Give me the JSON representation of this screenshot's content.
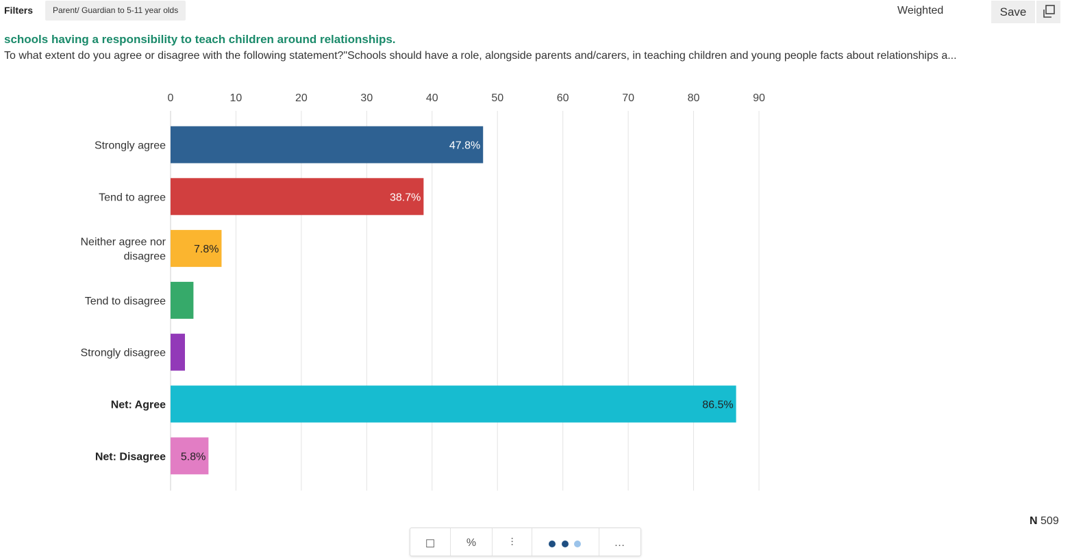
{
  "header": {
    "filters_label": "Filters",
    "filter_chip": "Parent/ Guardian to 5-11 year olds",
    "weighted_label": "Weighted",
    "save_label": "Save",
    "copy_icon": "copy-icon"
  },
  "question": {
    "title": "schools having a responsibility to teach children around relationships.",
    "text": "To what extent do you agree or disagree with the following statement?\"Schools should have a role, alongside parents and/carers, in teaching children and young people facts about relationships a..."
  },
  "chart_data": {
    "type": "bar",
    "orientation": "horizontal",
    "title": "",
    "xlabel": "",
    "ylabel": "",
    "xlim": [
      0,
      90
    ],
    "ticks": [
      0,
      10,
      20,
      30,
      40,
      50,
      60,
      70,
      80,
      90
    ],
    "grid": true,
    "categories": [
      [
        "Strongly agree"
      ],
      [
        "Tend to agree"
      ],
      [
        "Neither agree nor",
        "disagree"
      ],
      [
        "Tend to disagree"
      ],
      [
        "Strongly disagree"
      ],
      [
        "Net: Agree"
      ],
      [
        "Net: Disagree"
      ]
    ],
    "bold": [
      false,
      false,
      false,
      false,
      false,
      true,
      true
    ],
    "values": [
      47.8,
      38.7,
      7.8,
      3.5,
      2.2,
      86.5,
      5.8
    ],
    "labels": [
      "47.8%",
      "38.7%",
      "7.8%",
      "",
      "",
      "86.5%",
      "5.8%"
    ],
    "colors": [
      "#2e6192",
      "#d13f3f",
      "#fbb52f",
      "#36aa6a",
      "#9239b8",
      "#17bcd0",
      "#e27dc4"
    ],
    "label_colors": [
      "#ffffff",
      "#ffffff",
      "#222222",
      "#222222",
      "#222222",
      "#222222",
      "#222222"
    ]
  },
  "footer": {
    "n_label": "N",
    "n_value": "509"
  },
  "toolbar": {
    "items": [
      "☐",
      "%",
      "⫶",
      "",
      "…"
    ],
    "dots_icon": "toggle-dots-icon"
  }
}
